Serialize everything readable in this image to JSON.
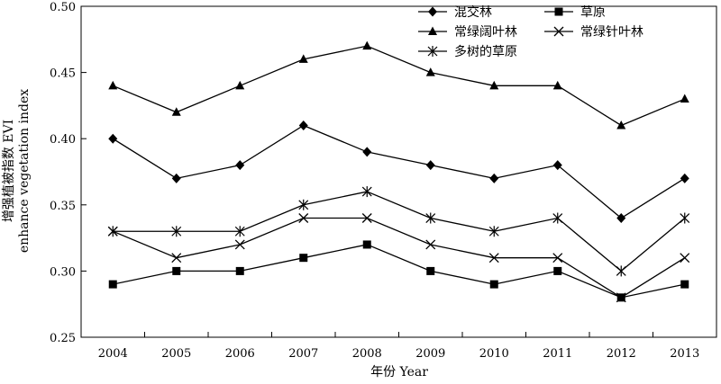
{
  "chart_data": {
    "type": "line",
    "title": "",
    "xlabel": "年份 Year",
    "ylabel_line1": "增强植被指数 EVI",
    "ylabel_line2": "enhance vegetation index",
    "categories": [
      "2004",
      "2005",
      "2006",
      "2007",
      "2008",
      "2009",
      "2010",
      "2011",
      "2012",
      "2013"
    ],
    "ylim": [
      0.25,
      0.5
    ],
    "yticks": [
      "0.25",
      "0.30",
      "0.35",
      "0.40",
      "0.45",
      "0.50"
    ],
    "grid": false,
    "legend_position": "top-right",
    "series": [
      {
        "name": "混交林",
        "marker": "diamond",
        "values": [
          0.4,
          0.37,
          0.38,
          0.41,
          0.39,
          0.38,
          0.37,
          0.38,
          0.34,
          0.37
        ]
      },
      {
        "name": "草原",
        "marker": "square",
        "values": [
          0.29,
          0.3,
          0.3,
          0.31,
          0.32,
          0.3,
          0.29,
          0.3,
          0.28,
          0.29
        ]
      },
      {
        "name": "常绿阔叶林",
        "marker": "triangle",
        "values": [
          0.44,
          0.42,
          0.44,
          0.46,
          0.47,
          0.45,
          0.44,
          0.44,
          0.41,
          0.43
        ]
      },
      {
        "name": "常绿针叶林",
        "marker": "x",
        "values": [
          0.33,
          0.31,
          0.32,
          0.34,
          0.34,
          0.32,
          0.31,
          0.31,
          0.28,
          0.31
        ]
      },
      {
        "name": "多树的草原",
        "marker": "star",
        "values": [
          0.33,
          0.33,
          0.33,
          0.35,
          0.36,
          0.34,
          0.33,
          0.34,
          0.3,
          0.34
        ]
      }
    ]
  }
}
